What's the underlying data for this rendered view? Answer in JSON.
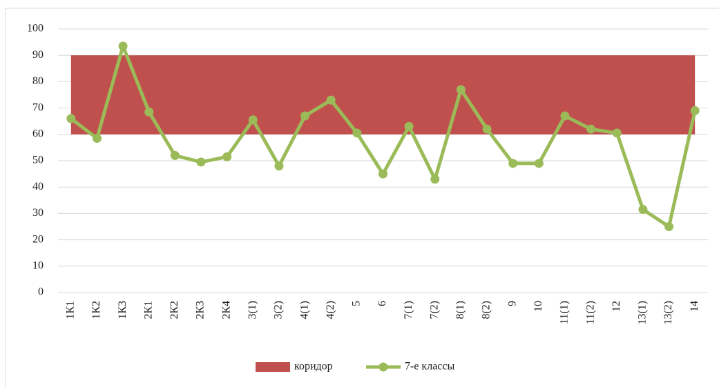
{
  "chart_data": {
    "type": "line",
    "categories": [
      "1К1",
      "1К2",
      "1К3",
      "2К1",
      "2К2",
      "2К3",
      "2К4",
      "3(1)",
      "3(2)",
      "4(1)",
      "4(2)",
      "5",
      "6",
      "7(1)",
      "7(2)",
      "8(1)",
      "8(2)",
      "9",
      "10",
      "11(1)",
      "11(2)",
      "12",
      "13(1)",
      "13(2)",
      "14"
    ],
    "band": {
      "name": "коридор",
      "color": "#c0504d",
      "from": 60,
      "to": 90
    },
    "series": [
      {
        "name": "7-е классы",
        "color": "#9bbb59",
        "values": [
          66,
          58.5,
          93.5,
          68.5,
          52,
          49.5,
          51.5,
          65.5,
          48,
          67,
          73,
          60.5,
          45,
          63,
          43,
          77,
          62,
          49,
          49,
          67,
          62,
          60.5,
          31.5,
          25,
          69
        ]
      }
    ],
    "ylim": [
      0,
      100
    ],
    "yticks": [
      0,
      10,
      20,
      30,
      40,
      50,
      60,
      70,
      80,
      90,
      100
    ],
    "grid": true,
    "legend": "bottom"
  }
}
